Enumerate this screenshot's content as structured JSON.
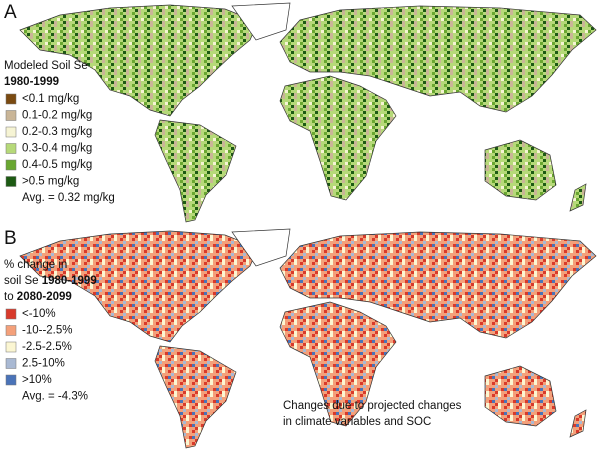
{
  "panels": [
    {
      "letter": "A",
      "legend_title": [
        [
          {
            "text": "Modeled Soil Se",
            "bold": false
          }
        ],
        [
          {
            "text": "1980-1999",
            "bold": true
          }
        ]
      ],
      "legend": [
        {
          "label": "<0.1 mg/kg",
          "color": "#7a4a10"
        },
        {
          "label": "0.1-0.2 mg/kg",
          "color": "#c9b597"
        },
        {
          "label": "0.2-0.3 mg/kg",
          "color": "#f6f4d4"
        },
        {
          "label": "0.3-0.4 mg/kg",
          "color": "#b6d979"
        },
        {
          "label": "0.4-0.5 mg/kg",
          "color": "#69a731"
        },
        {
          "label": ">0.5 mg/kg",
          "color": "#1d5a13"
        }
      ],
      "average": "Avg. = 0.32 mg/kg"
    },
    {
      "letter": "B",
      "legend_title": [
        [
          {
            "text": "% change in",
            "bold": false
          }
        ],
        [
          {
            "text": "soil Se ",
            "bold": false
          },
          {
            "text": "1980-1999",
            "bold": true
          }
        ],
        [
          {
            "text": "to ",
            "bold": false
          },
          {
            "text": "2080-2099",
            "bold": true
          }
        ]
      ],
      "legend": [
        {
          "label": "<-10%",
          "color": "#d83a2b"
        },
        {
          "label": "-10--2.5%",
          "color": "#f4a07a"
        },
        {
          "label": "-2.5-2.5%",
          "color": "#fbf6d2"
        },
        {
          "label": "2.5-10%",
          "color": "#a9b9d3"
        },
        {
          "label": ">10%",
          "color": "#4a73b8"
        }
      ],
      "average": "Avg. = -4.3%",
      "note": [
        "Changes due to projected changes",
        "in climate variables and SOC"
      ]
    }
  ]
}
